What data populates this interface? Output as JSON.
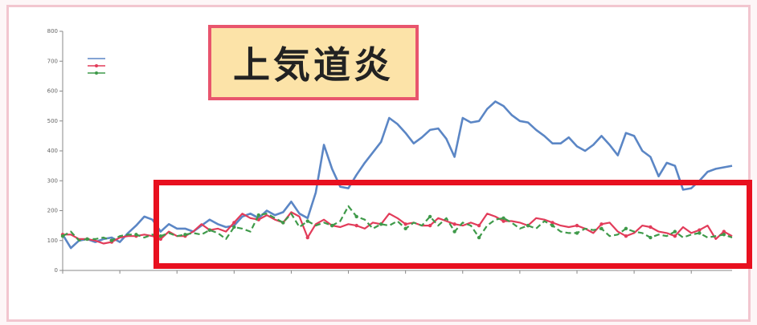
{
  "heading": "上気道炎",
  "colors": {
    "highlight": "#e8101f",
    "heading_bg": "#fce3a8",
    "heading_border": "#e8556d",
    "series_1": "#5b86c5",
    "series_2": "#e23c5a",
    "series_3": "#3f9a4a"
  },
  "chart_data": {
    "type": "line",
    "title": "",
    "xlabel": "",
    "ylabel": "",
    "ylim": [
      0,
      800
    ],
    "yticks": [
      0,
      100,
      200,
      300,
      400,
      500,
      600,
      700,
      800
    ],
    "grid": false,
    "legend": "top-left",
    "x": [
      1,
      2,
      3,
      4,
      5,
      6,
      7,
      8,
      9,
      10,
      11,
      12,
      13,
      14,
      15,
      16,
      17,
      18,
      19,
      20,
      21,
      22,
      23,
      24,
      25,
      26,
      27,
      28,
      29,
      30,
      31,
      32,
      33,
      34,
      35,
      36,
      37,
      38,
      39,
      40,
      41,
      42,
      43,
      44,
      45,
      46,
      47,
      48,
      49,
      50,
      51,
      52,
      53,
      54,
      55,
      56,
      57,
      58,
      59,
      60,
      61,
      62,
      63,
      64,
      65,
      66,
      67,
      68,
      69,
      70,
      71,
      72,
      73,
      74,
      75,
      76,
      77,
      78,
      79,
      80,
      81,
      82,
      83
    ],
    "series": [
      {
        "name": "",
        "color": "#5b86c5",
        "values": [
          120,
          75,
          100,
          105,
          95,
          105,
          110,
          95,
          125,
          150,
          180,
          170,
          130,
          155,
          140,
          140,
          130,
          150,
          170,
          155,
          145,
          150,
          180,
          190,
          175,
          200,
          185,
          195,
          230,
          190,
          175,
          260,
          420,
          340,
          280,
          275,
          320,
          360,
          395,
          430,
          510,
          490,
          460,
          425,
          445,
          470,
          475,
          440,
          380,
          510,
          495,
          500,
          540,
          565,
          550,
          520,
          500,
          495,
          470,
          450,
          425,
          425,
          445,
          415,
          400,
          420,
          450,
          420,
          385,
          460,
          450,
          400,
          380,
          315,
          360,
          350,
          270,
          275,
          300,
          330,
          340,
          345,
          350
        ]
      },
      {
        "name": "",
        "color": "#e23c5a",
        "values": [
          120,
          120,
          105,
          105,
          100,
          90,
          95,
          110,
          115,
          115,
          120,
          115,
          105,
          130,
          115,
          115,
          130,
          155,
          135,
          140,
          130,
          160,
          190,
          175,
          170,
          185,
          170,
          160,
          195,
          180,
          110,
          155,
          170,
          150,
          145,
          155,
          150,
          140,
          160,
          155,
          190,
          175,
          155,
          160,
          150,
          150,
          175,
          165,
          155,
          150,
          160,
          150,
          190,
          180,
          165,
          165,
          160,
          150,
          175,
          170,
          160,
          150,
          145,
          150,
          140,
          125,
          155,
          160,
          130,
          115,
          125,
          150,
          145,
          130,
          125,
          115,
          145,
          125,
          135,
          150,
          105,
          130,
          115
        ]
      },
      {
        "name": "",
        "color": "#3f9a4a",
        "values": [
          115,
          130,
          100,
          105,
          105,
          110,
          100,
          115,
          120,
          120,
          110,
          120,
          115,
          125,
          115,
          120,
          125,
          120,
          135,
          125,
          105,
          145,
          140,
          130,
          185,
          190,
          175,
          160,
          190,
          145,
          165,
          150,
          160,
          150,
          165,
          215,
          180,
          170,
          140,
          155,
          150,
          165,
          140,
          160,
          150,
          180,
          150,
          175,
          130,
          160,
          150,
          110,
          150,
          170,
          175,
          160,
          140,
          150,
          140,
          165,
          150,
          130,
          125,
          125,
          140,
          135,
          140,
          115,
          120,
          140,
          130,
          125,
          110,
          120,
          115,
          130,
          110,
          120,
          125,
          110,
          115,
          120,
          110
        ]
      }
    ]
  }
}
